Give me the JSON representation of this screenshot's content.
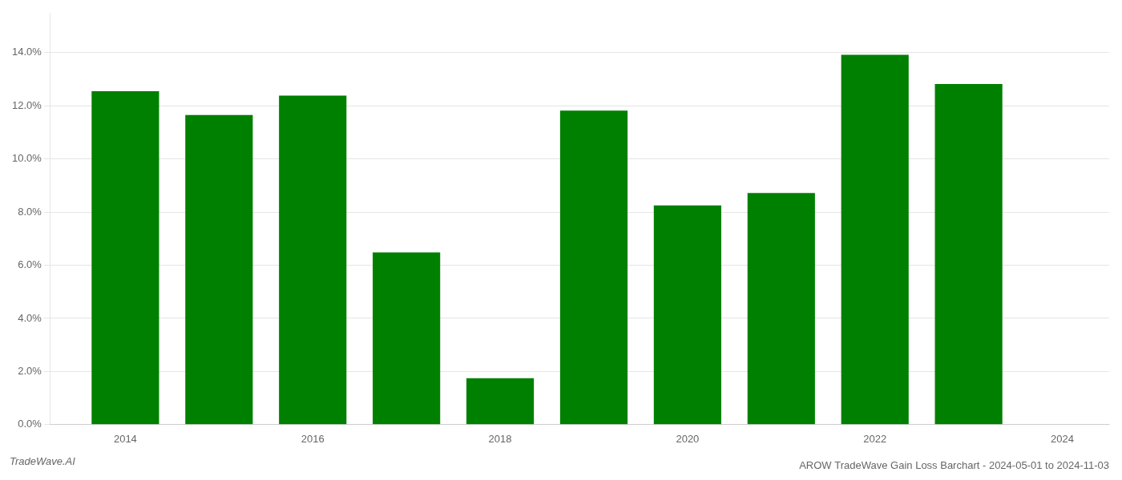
{
  "chart_data": {
    "type": "bar",
    "title": "AROW TradeWave Gain Loss Barchart - 2024-05-01 to 2024-11-03",
    "annotations": [
      {
        "text": "TradeWave.AI"
      }
    ],
    "x": [
      2014,
      2015,
      2016,
      2017,
      2018,
      2019,
      2020,
      2021,
      2022,
      2023
    ],
    "values": [
      0.1255,
      0.1165,
      0.1238,
      0.0648,
      0.0175,
      0.1182,
      0.0825,
      0.0872,
      0.1392,
      0.1282
    ],
    "color": "#008000",
    "xlim": [
      2013.2,
      2024.5
    ],
    "xticks": [
      2014,
      2016,
      2018,
      2020,
      2022,
      2024
    ],
    "ylim": [
      0,
      0.155
    ],
    "yticks": [
      {
        "value": 0.0,
        "label": "0.0%"
      },
      {
        "value": 0.02,
        "label": "2.0%"
      },
      {
        "value": 0.04,
        "label": "4.0%"
      },
      {
        "value": 0.06,
        "label": "6.0%"
      },
      {
        "value": 0.08,
        "label": "8.0%"
      },
      {
        "value": 0.1,
        "label": "10.0%"
      },
      {
        "value": 0.12,
        "label": "12.0%"
      },
      {
        "value": 0.14,
        "label": "14.0%"
      }
    ],
    "grid": true
  }
}
